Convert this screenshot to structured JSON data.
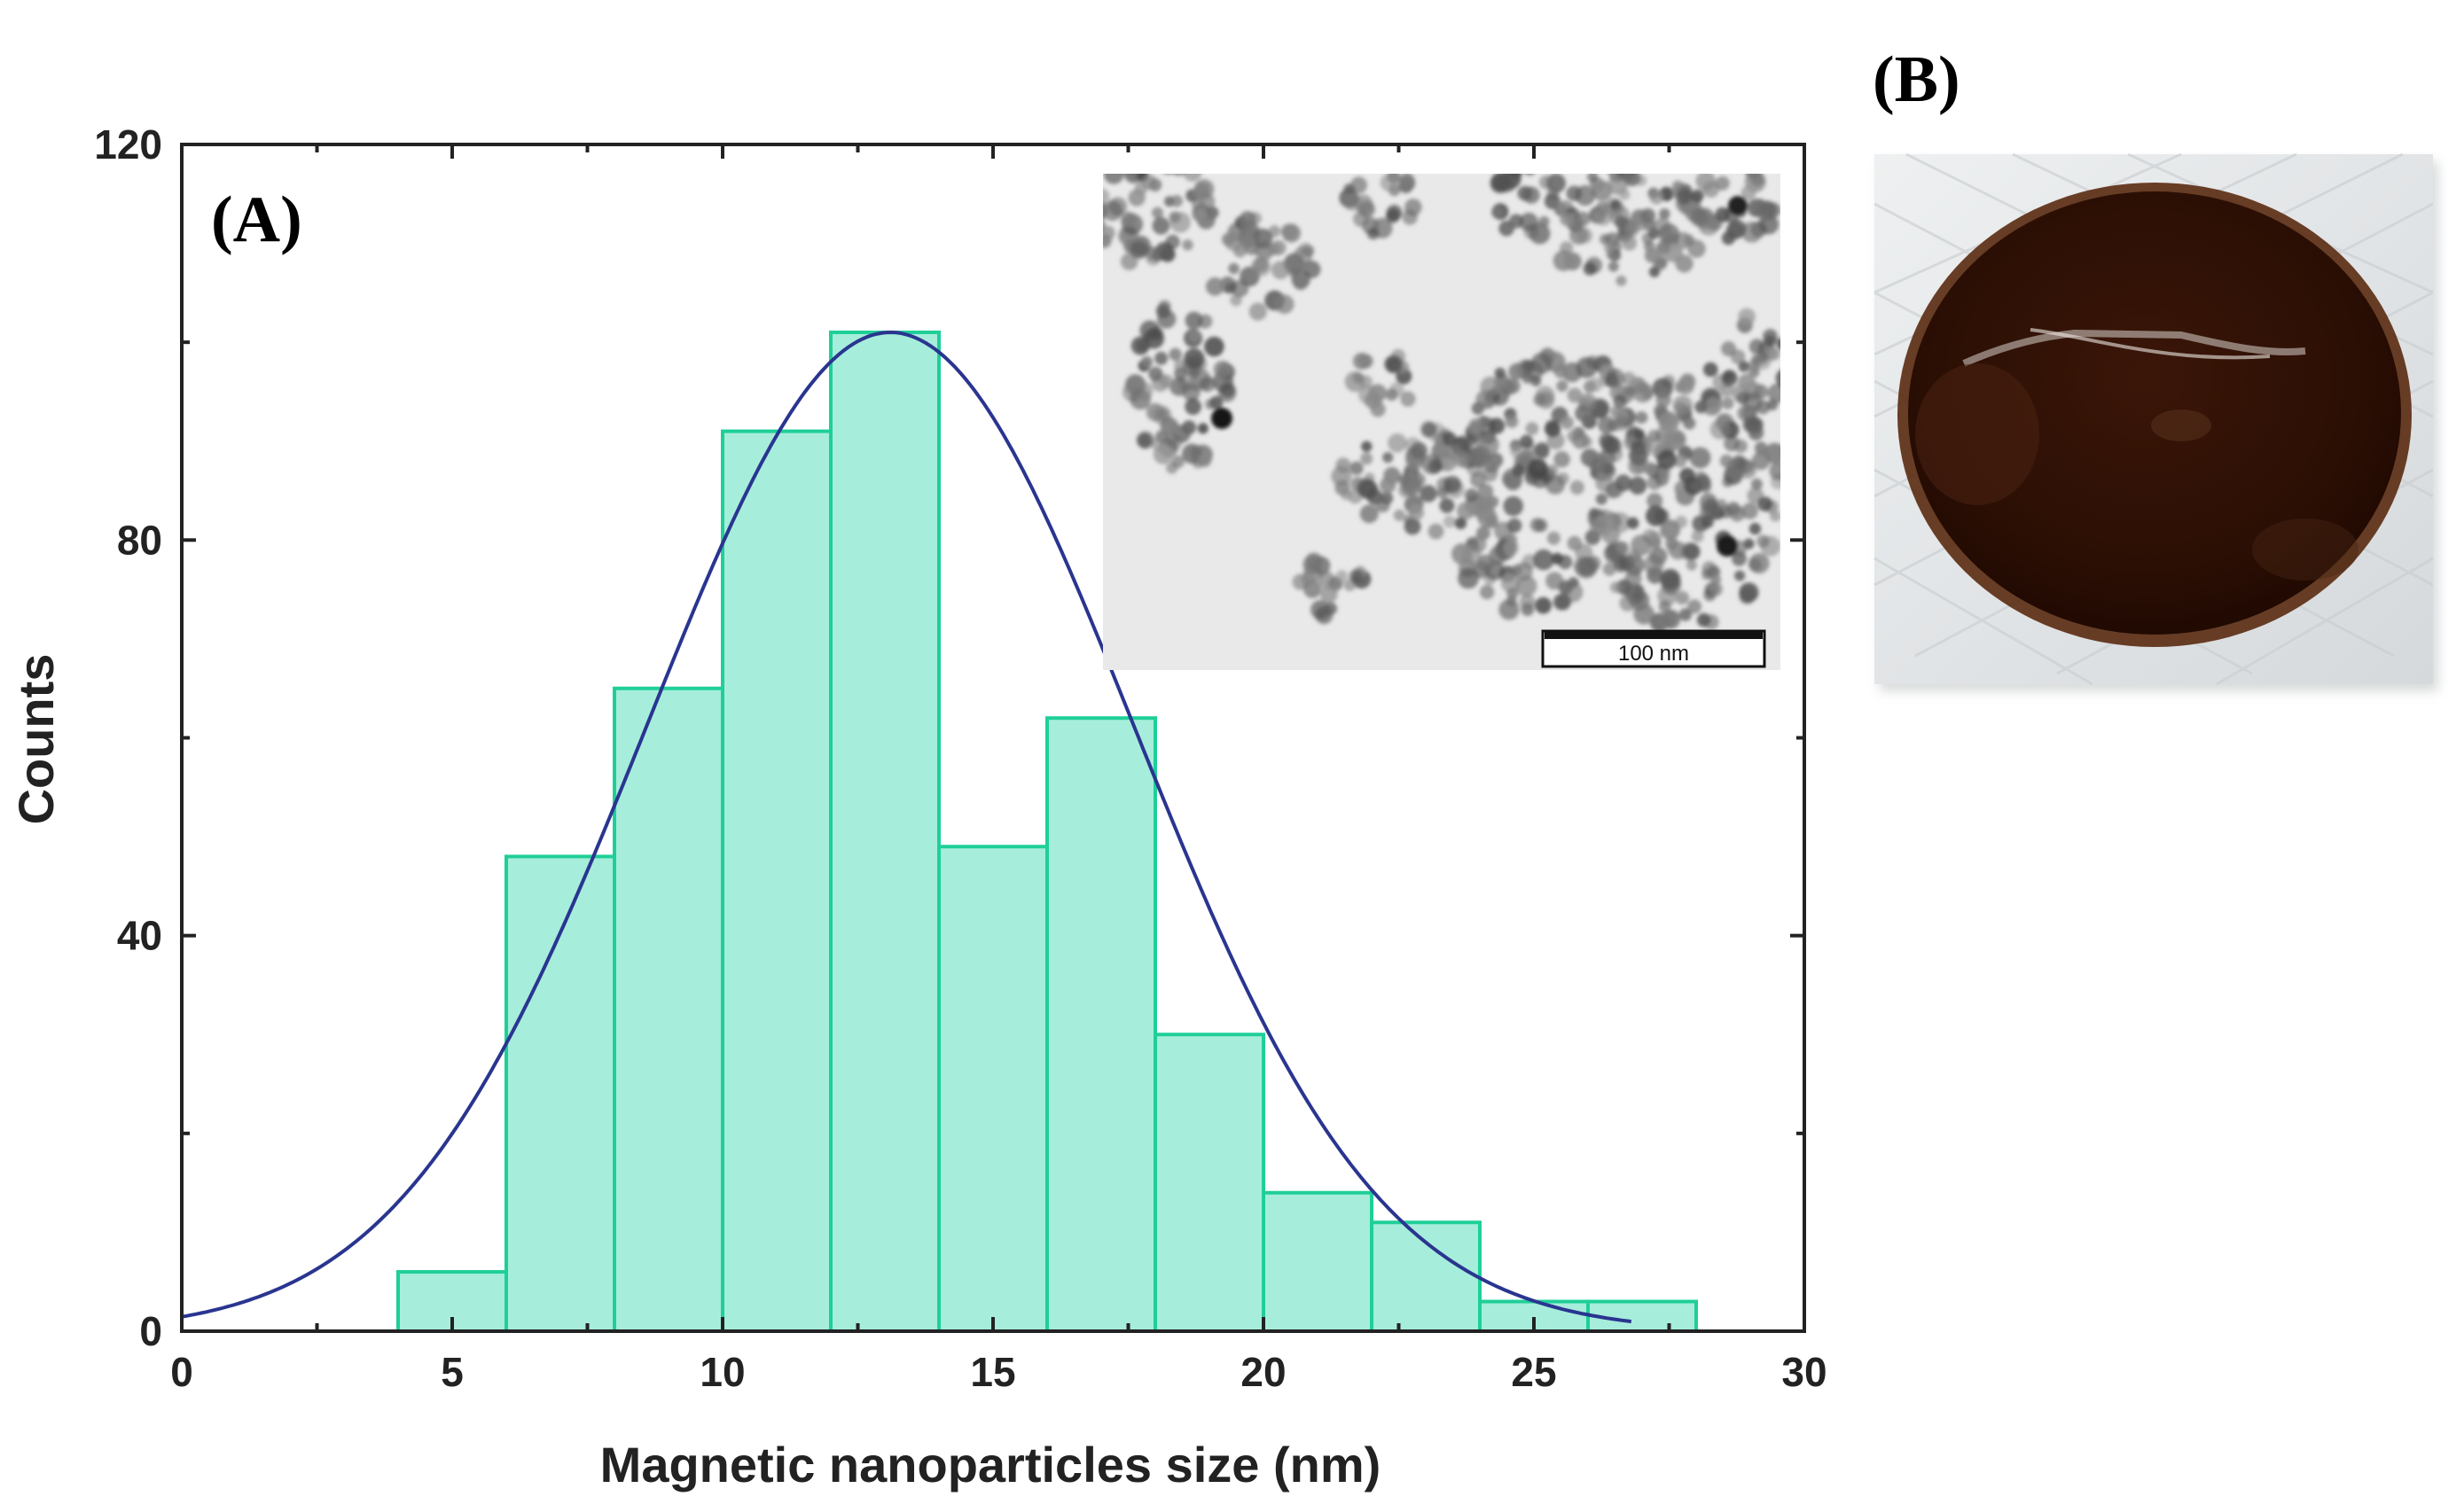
{
  "figure": {
    "panel_a_label": "(A)",
    "panel_b_label": "(B)"
  },
  "chart_data": {
    "type": "histogram",
    "title": "",
    "xlabel": "Magnetic nanoparticles size (nm)",
    "ylabel": "Counts",
    "xlim": [
      0,
      30
    ],
    "ylim": [
      0,
      120
    ],
    "x_ticks": [
      0,
      5,
      10,
      15,
      20,
      25,
      30
    ],
    "y_ticks": [
      0,
      40,
      80,
      120
    ],
    "grid": false,
    "bins": [
      {
        "start": 4,
        "end": 6,
        "count": 6
      },
      {
        "start": 6,
        "end": 8,
        "count": 48
      },
      {
        "start": 8,
        "end": 10,
        "count": 65
      },
      {
        "start": 10,
        "end": 12,
        "count": 91
      },
      {
        "start": 12,
        "end": 14,
        "count": 101
      },
      {
        "start": 14,
        "end": 16,
        "count": 49
      },
      {
        "start": 16,
        "end": 18,
        "count": 62
      },
      {
        "start": 18,
        "end": 20,
        "count": 30
      },
      {
        "start": 20,
        "end": 22,
        "count": 14
      },
      {
        "start": 22,
        "end": 24,
        "count": 11
      },
      {
        "start": 24,
        "end": 26,
        "count": 3
      },
      {
        "start": 26,
        "end": 28,
        "count": 3
      }
    ],
    "fit": {
      "type": "gaussian",
      "peak_x": 13.1,
      "peak_y": 101,
      "sigma": 4.5,
      "x_range": [
        0,
        26.8
      ]
    },
    "colors": {
      "bar_fill": "#a6eedb",
      "bar_edge": "#1fcf98",
      "fit_line": "#2a3590",
      "axis": "#222222"
    },
    "inset": {
      "description_type": "TEM micrograph",
      "scale_bar_label": "100 nm"
    }
  }
}
